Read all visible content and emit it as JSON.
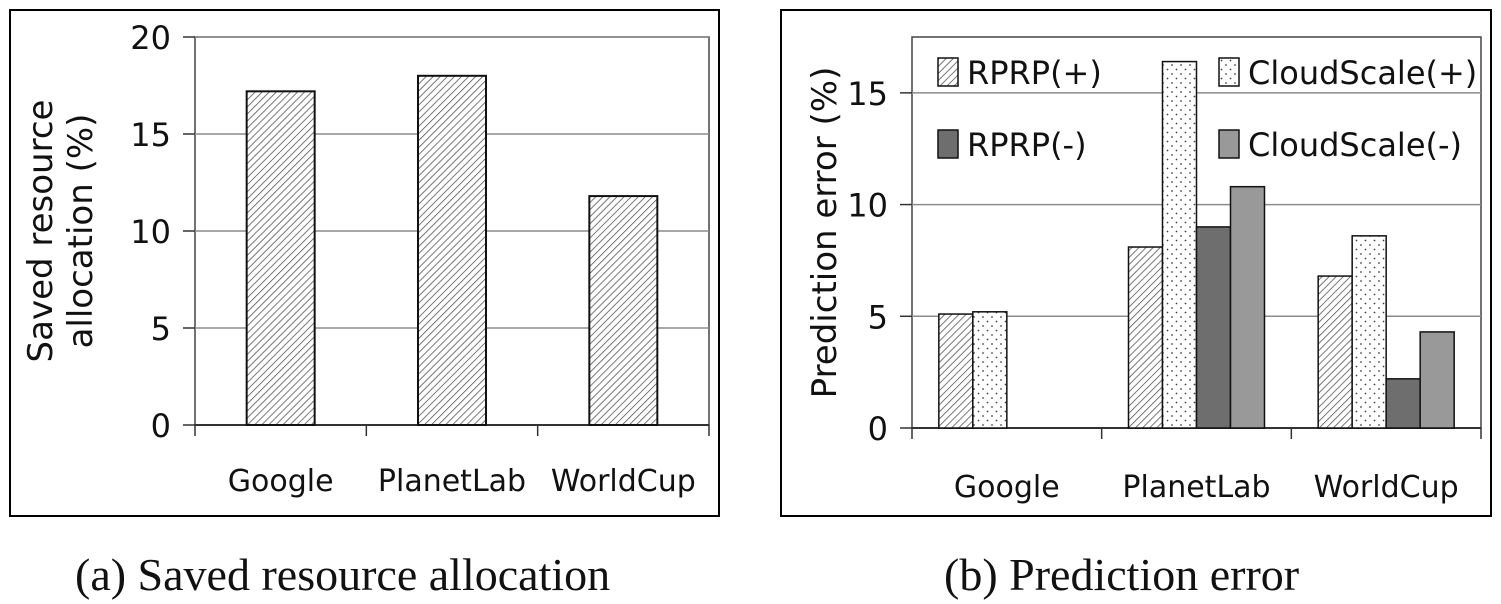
{
  "figure": {
    "caption_a": "(a) Saved resource allocation",
    "caption_b": "(b) Prediction error"
  },
  "chart_data": [
    {
      "type": "bar",
      "title": "",
      "xlabel": "",
      "ylabel": "Saved resource allocation (%)",
      "categories": [
        "Google",
        "PlanetLab",
        "WorldCup"
      ],
      "series": [
        {
          "values": [
            17.2,
            18.0,
            11.8
          ],
          "pattern": "hatch"
        }
      ],
      "ylim": [
        0,
        20
      ],
      "yticks": [
        0,
        5,
        10,
        15,
        20
      ],
      "grid": true,
      "colors": {
        "bar_fill": "#ffffff",
        "hatch": "#555555",
        "grid": "#8c8c8c"
      }
    },
    {
      "type": "bar",
      "title": "",
      "xlabel": "",
      "ylabel": "Prediction error (%)",
      "categories": [
        "Google",
        "PlanetLab",
        "WorldCup"
      ],
      "series": [
        {
          "name": "RPRP(+)",
          "values": [
            5.1,
            8.1,
            6.8
          ],
          "pattern": "hatch"
        },
        {
          "name": "CloudScale(+)",
          "values": [
            5.2,
            16.4,
            8.6
          ],
          "pattern": "dots"
        },
        {
          "name": "RPRP(-)",
          "values": [
            0,
            9.0,
            2.2
          ],
          "pattern": "dark"
        },
        {
          "name": "CloudScale(-)",
          "values": [
            0,
            10.8,
            4.3
          ],
          "pattern": "medium"
        }
      ],
      "ylim": [
        0,
        17.5
      ],
      "yticks": [
        0,
        5,
        10,
        15
      ],
      "grid": true,
      "legend": "top, two columns",
      "colors": {
        "dark": "#6e6e6e",
        "medium": "#999999",
        "grid": "#8c8c8c"
      }
    }
  ]
}
